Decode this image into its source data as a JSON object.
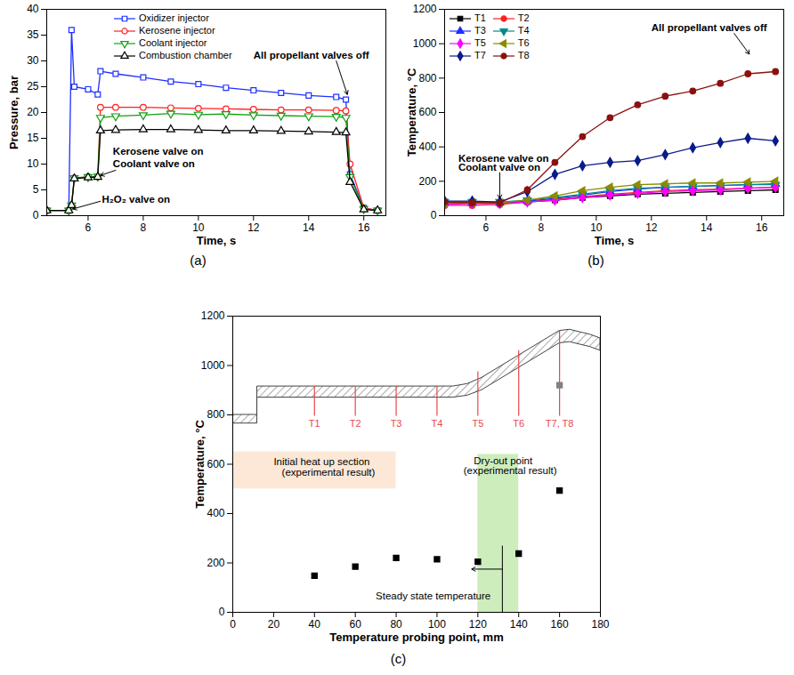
{
  "chart_data": [
    {
      "type": "line",
      "title": "(a)",
      "x_label": "Time, s",
      "y_label": "Pressure, bar",
      "xlim": [
        4.5,
        16.8
      ],
      "xticks": [
        6,
        8,
        10,
        12,
        14,
        16
      ],
      "ylim": [
        0,
        40
      ],
      "yticks": [
        0,
        5,
        10,
        15,
        20,
        25,
        30,
        35,
        40
      ],
      "legend": "upper left",
      "x": [
        4.5,
        5.3,
        5.4,
        5.5,
        6.0,
        6.35,
        6.45,
        7.0,
        8.0,
        9.0,
        10.0,
        11.0,
        12.0,
        13.0,
        14.0,
        15.0,
        15.35,
        15.5,
        16.0,
        16.5
      ],
      "series": [
        {
          "name": "Oxidizer injector",
          "color": "#1f2fff",
          "marker": "square-open",
          "values": [
            1,
            1,
            36,
            25,
            24.5,
            23.5,
            28,
            27.5,
            26.8,
            26,
            25.5,
            24.8,
            24.3,
            23.8,
            23.3,
            23,
            22.5,
            8,
            1.5,
            1
          ]
        },
        {
          "name": "Kerosene injector",
          "color": "#ff2020",
          "marker": "circle-open",
          "values": [
            1,
            1,
            2,
            7.3,
            7.5,
            7.6,
            21,
            21,
            21,
            20.9,
            20.8,
            20.7,
            20.6,
            20.5,
            20.5,
            20.4,
            20.3,
            10,
            1.5,
            1
          ]
        },
        {
          "name": "Coolant injector",
          "color": "#10a010",
          "marker": "triangle-down-open",
          "values": [
            1,
            1,
            2,
            7.3,
            7.5,
            7.6,
            19,
            19.3,
            19.5,
            19.8,
            19.6,
            19.7,
            19.5,
            19.4,
            19.3,
            19.2,
            19,
            7.5,
            1.3,
            1
          ]
        },
        {
          "name": "Combustion chamber",
          "color": "#000000",
          "marker": "triangle-open",
          "values": [
            1,
            1,
            2,
            7.2,
            7.4,
            7.5,
            16.5,
            16.6,
            16.7,
            16.7,
            16.6,
            16.5,
            16.5,
            16.4,
            16.3,
            16.2,
            16.1,
            6.5,
            1.2,
            1
          ]
        }
      ],
      "annotations": [
        {
          "text": "All propellant valves off",
          "x": 12.0,
          "y": 31,
          "arrow": {
            "x": [
              15.0,
              15.4
            ],
            "y": [
              30,
              23.5
            ]
          }
        },
        {
          "text": "Kerosene valve on",
          "x": 6.9,
          "y": 12.5
        },
        {
          "text": "Coolant valve on",
          "x": 6.9,
          "y": 10.0,
          "arrow": {
            "x": [
              7.0,
              6.45
            ],
            "y": [
              8.8,
              7.8
            ]
          }
        },
        {
          "text": "H₂O₂ valve on",
          "x": 6.5,
          "y": 3.2,
          "arrow": {
            "x": [
              6.45,
              5.45
            ],
            "y": [
              2.8,
              1.3
            ]
          }
        }
      ]
    },
    {
      "type": "line",
      "title": "(b)",
      "x_label": "Time, s",
      "y_label": "Temperature, °C",
      "xlim": [
        4.5,
        16.8
      ],
      "xticks": [
        6,
        8,
        10,
        12,
        14,
        16
      ],
      "ylim": [
        0,
        1200
      ],
      "yticks": [
        0,
        200,
        400,
        600,
        800,
        1000,
        1200
      ],
      "legend": "upper left",
      "x": [
        4.5,
        5.5,
        6.5,
        7.5,
        8.5,
        9.5,
        10.5,
        11.5,
        12.5,
        13.5,
        14.5,
        15.5,
        16.5
      ],
      "series": [
        {
          "name": "T1",
          "color": "#000000",
          "marker": "square",
          "values": [
            75,
            75,
            75,
            80,
            90,
            105,
            115,
            125,
            130,
            135,
            140,
            145,
            150
          ]
        },
        {
          "name": "T2",
          "color": "#ff2020",
          "marker": "circle",
          "values": [
            60,
            60,
            65,
            80,
            95,
            110,
            125,
            135,
            145,
            150,
            155,
            160,
            165
          ]
        },
        {
          "name": "T3",
          "color": "#1f2fff",
          "marker": "triangle",
          "values": [
            75,
            75,
            75,
            85,
            100,
            120,
            140,
            155,
            165,
            170,
            175,
            180,
            185
          ]
        },
        {
          "name": "T4",
          "color": "#008b8b",
          "marker": "triangle-down",
          "values": [
            80,
            80,
            80,
            90,
            105,
            125,
            145,
            160,
            165,
            170,
            175,
            180,
            180
          ]
        },
        {
          "name": "T5",
          "color": "#ff00ff",
          "marker": "diamond",
          "values": [
            65,
            70,
            70,
            80,
            90,
            105,
            120,
            130,
            140,
            145,
            150,
            160,
            165
          ]
        },
        {
          "name": "T6",
          "color": "#8b8b00",
          "marker": "triangle-left",
          "values": [
            75,
            75,
            75,
            90,
            115,
            145,
            165,
            180,
            185,
            190,
            190,
            195,
            200
          ]
        },
        {
          "name": "T7",
          "color": "#0a1a8a",
          "marker": "diamond",
          "values": [
            85,
            85,
            80,
            140,
            240,
            290,
            310,
            320,
            355,
            395,
            425,
            450,
            435
          ]
        },
        {
          "name": "T8",
          "color": "#8b1010",
          "marker": "circle",
          "values": [
            80,
            75,
            75,
            150,
            310,
            460,
            570,
            645,
            695,
            725,
            770,
            825,
            838
          ]
        }
      ],
      "annotations": [
        {
          "text": "All propellant valves off",
          "x": 12.0,
          "y": 1090,
          "arrow": {
            "x": [
              15.0,
              15.55
            ],
            "y": [
              1060,
              940
            ]
          }
        },
        {
          "text": "Kerosene valve on",
          "x": 5.0,
          "y": 330
        },
        {
          "text": "Coolant valve on",
          "x": 5.0,
          "y": 280,
          "arrow": {
            "x": [
              6.5,
              6.5
            ],
            "y": [
              250,
              100
            ]
          }
        }
      ]
    },
    {
      "type": "scatter",
      "title": "(c)",
      "x_label": "Temperature probing point, mm",
      "y_label": "Temperature, °C",
      "xlim": [
        0,
        180
      ],
      "xticks": [
        0,
        20,
        40,
        60,
        80,
        100,
        120,
        140,
        160,
        180
      ],
      "ylim": [
        0,
        1200
      ],
      "yticks": [
        0,
        200,
        400,
        600,
        800,
        1000,
        1200
      ],
      "x": [
        40,
        60,
        80,
        100,
        120,
        140,
        160,
        160
      ],
      "values": [
        148,
        185,
        220,
        215,
        205,
        238,
        493,
        920
      ],
      "colors": [
        "#000000",
        "#000000",
        "#000000",
        "#000000",
        "#000000",
        "#000000",
        "#000000",
        "#808080"
      ],
      "marker": "square",
      "regions": [
        {
          "x": [
            0,
            80
          ],
          "y": [
            500,
            650
          ],
          "color": "#fde4d0"
        },
        {
          "x": [
            120,
            140
          ],
          "y": [
            0,
            640
          ],
          "color": "#c6eab0"
        }
      ],
      "wall": {
        "x": [
          0,
          12,
          12,
          108,
          115,
          122,
          140,
          160,
          165,
          175,
          180
        ],
        "outer": [
          800,
          800,
          915,
          915,
          925,
          950,
          1040,
          1140,
          1145,
          1125,
          1110
        ],
        "inner": [
          765,
          765,
          870,
          870,
          878,
          900,
          990,
          1090,
          1095,
          1075,
          1060
        ]
      },
      "probes": {
        "x": [
          40,
          60,
          80,
          100,
          120,
          140,
          160
        ],
        "labels": [
          "T1",
          "T2",
          "T3",
          "T4",
          "T5",
          "T6",
          "T7, T8"
        ],
        "color": "#e8474c",
        "bottom": 795,
        "top": [
          915,
          915,
          915,
          915,
          975,
          1060,
          1140
        ]
      },
      "annotations": [
        {
          "text": "Initial heat up section",
          "x": 20,
          "y": 610
        },
        {
          "text": "(experimental result)",
          "x": 24,
          "y": 565
        },
        {
          "text": "Dry-out point",
          "x": 118,
          "y": 615
        },
        {
          "text": "(experimental result)",
          "x": 113,
          "y": 572
        },
        {
          "text": "Steady state temperature",
          "x": 70,
          "y": 65,
          "arrow": {
            "x": [
              132,
              117
            ],
            "y": [
              175,
              175
            ]
          },
          "rule": {
            "x": [
              132,
              132
            ],
            "y": [
              0,
              270
            ]
          }
        }
      ]
    }
  ]
}
